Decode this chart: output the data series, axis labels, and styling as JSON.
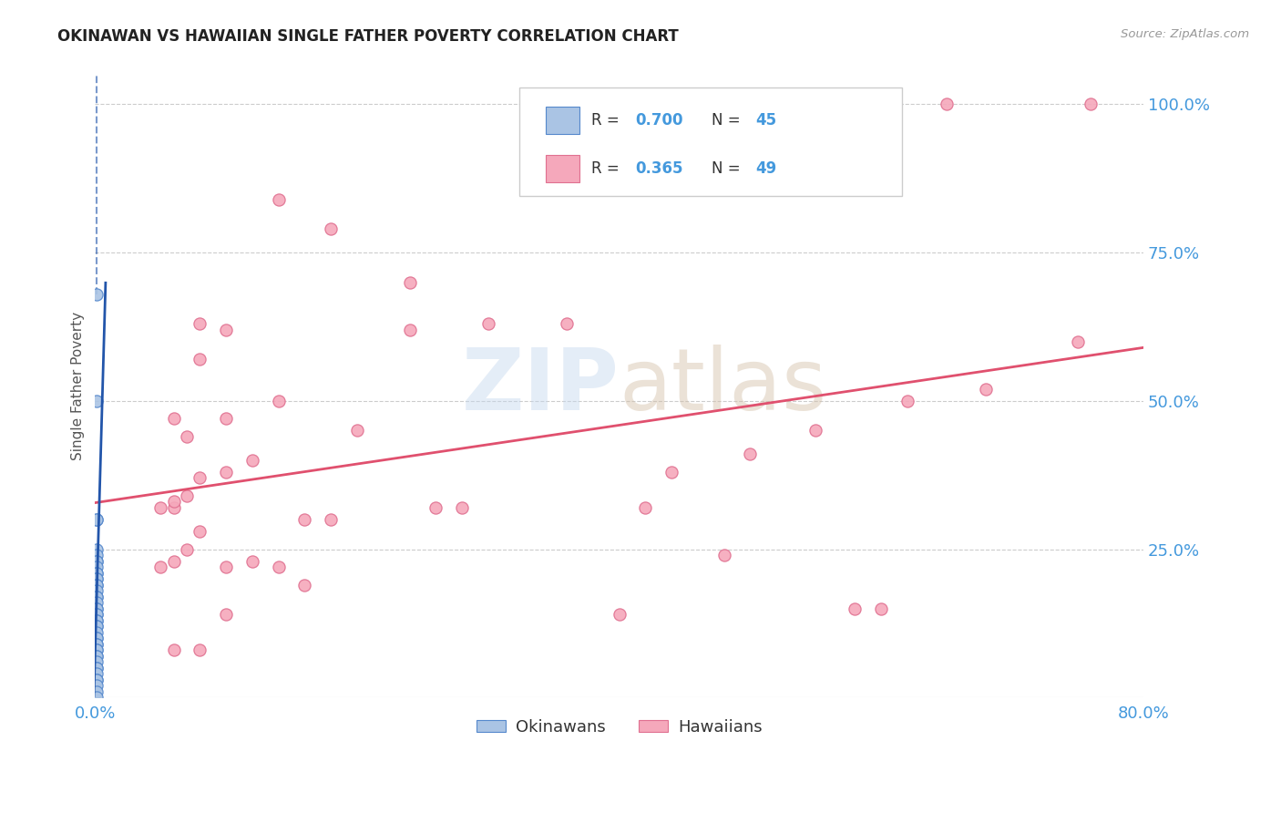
{
  "title": "OKINAWAN VS HAWAIIAN SINGLE FATHER POVERTY CORRELATION CHART",
  "source": "Source: ZipAtlas.com",
  "ylabel": "Single Father Poverty",
  "legend_label1": "Okinawans",
  "legend_label2": "Hawaiians",
  "okinawan_color": "#aac4e4",
  "hawaiian_color": "#f5a8bb",
  "okinawan_line_color": "#2255aa",
  "hawaiian_line_color": "#e0506e",
  "okinawan_edge_color": "#5588cc",
  "hawaiian_edge_color": "#e07090",
  "background_color": "#ffffff",
  "xlim": [
    0.0,
    0.8
  ],
  "ylim": [
    0.0,
    1.05
  ],
  "okinawan_x": [
    0.001,
    0.001,
    0.001,
    0.001,
    0.001,
    0.001,
    0.001,
    0.001,
    0.001,
    0.001,
    0.001,
    0.001,
    0.001,
    0.001,
    0.001,
    0.001,
    0.001,
    0.001,
    0.001,
    0.001,
    0.001,
    0.001,
    0.001,
    0.001,
    0.001,
    0.001,
    0.001,
    0.001,
    0.001,
    0.001,
    0.001,
    0.001,
    0.001,
    0.001,
    0.001,
    0.001,
    0.001,
    0.001,
    0.001,
    0.001,
    0.001,
    0.001,
    0.001,
    0.001,
    0.001
  ],
  "okinawan_y": [
    0.68,
    0.5,
    0.3,
    0.3,
    0.25,
    0.24,
    0.23,
    0.23,
    0.22,
    0.21,
    0.21,
    0.2,
    0.2,
    0.19,
    0.19,
    0.18,
    0.17,
    0.17,
    0.16,
    0.15,
    0.15,
    0.14,
    0.14,
    0.13,
    0.13,
    0.12,
    0.12,
    0.11,
    0.1,
    0.1,
    0.09,
    0.09,
    0.08,
    0.08,
    0.07,
    0.07,
    0.06,
    0.05,
    0.05,
    0.04,
    0.03,
    0.03,
    0.02,
    0.01,
    0.0
  ],
  "hawaiian_x": [
    0.65,
    0.76,
    0.14,
    0.18,
    0.24,
    0.24,
    0.1,
    0.08,
    0.06,
    0.07,
    0.08,
    0.3,
    0.36,
    0.1,
    0.14,
    0.06,
    0.07,
    0.08,
    0.1,
    0.12,
    0.05,
    0.06,
    0.05,
    0.06,
    0.07,
    0.08,
    0.48,
    0.58,
    0.1,
    0.4,
    0.6,
    0.26,
    0.28,
    0.06,
    0.08,
    0.16,
    0.42,
    0.1,
    0.12,
    0.14,
    0.16,
    0.18,
    0.2,
    0.44,
    0.5,
    0.55,
    0.62,
    0.68,
    0.75
  ],
  "hawaiian_y": [
    1.0,
    1.0,
    0.84,
    0.79,
    0.7,
    0.62,
    0.62,
    0.57,
    0.47,
    0.44,
    0.63,
    0.63,
    0.63,
    0.47,
    0.5,
    0.32,
    0.34,
    0.37,
    0.38,
    0.4,
    0.32,
    0.33,
    0.22,
    0.23,
    0.25,
    0.28,
    0.24,
    0.15,
    0.14,
    0.14,
    0.15,
    0.32,
    0.32,
    0.08,
    0.08,
    0.19,
    0.32,
    0.22,
    0.23,
    0.22,
    0.3,
    0.3,
    0.45,
    0.38,
    0.41,
    0.45,
    0.5,
    0.52,
    0.6
  ]
}
